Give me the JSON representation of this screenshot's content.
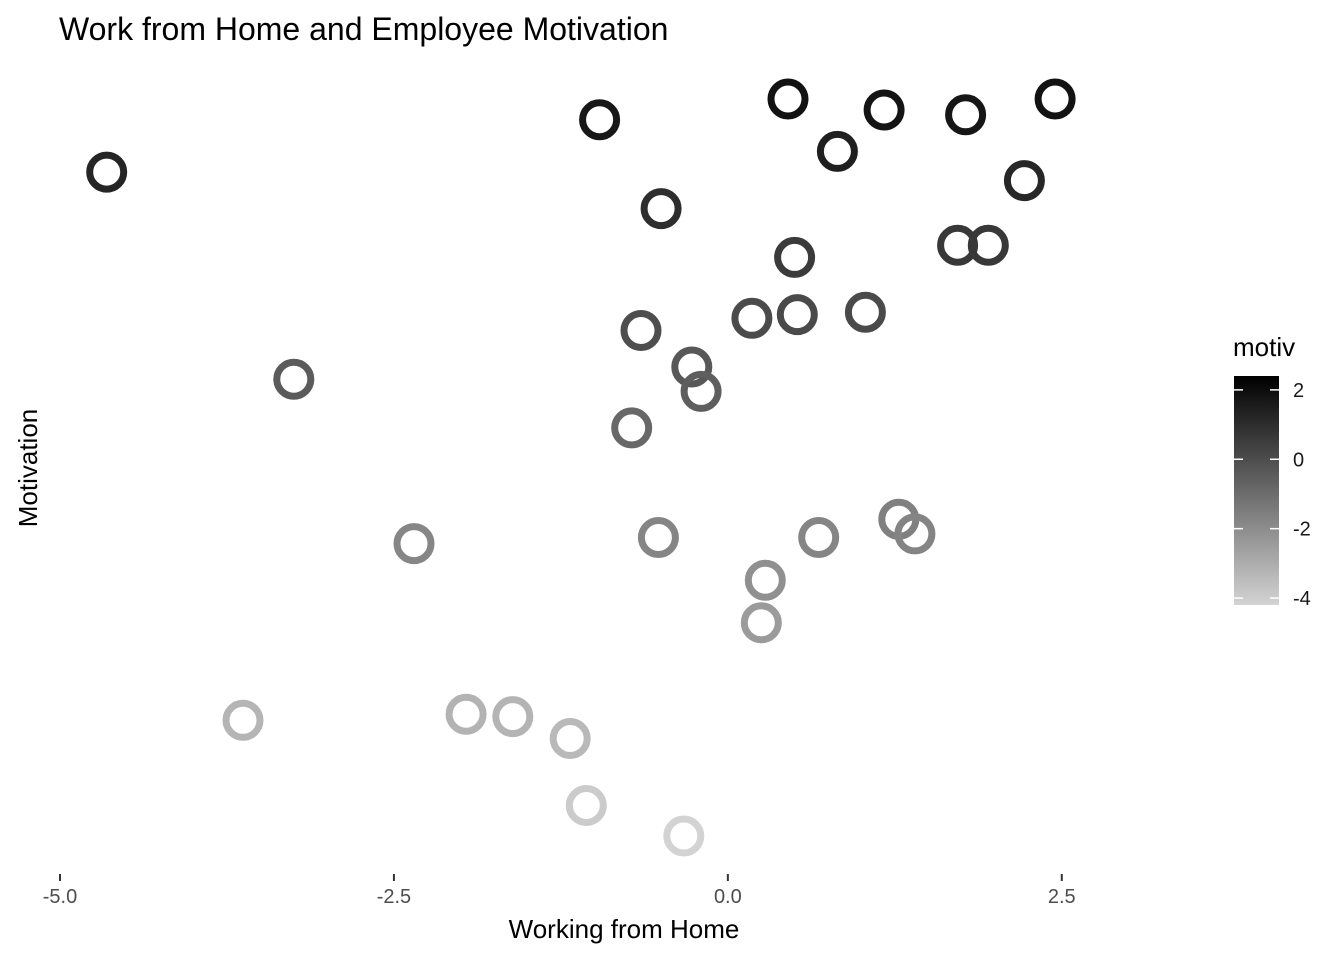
{
  "chart_data": {
    "type": "scatter",
    "title": "Work from Home and Employee Motivation",
    "xlabel": "Working from Home",
    "ylabel": "Motivation",
    "xlim": [
      -5.0,
      3.4
    ],
    "x_ticks": [
      -5.0,
      -2.5,
      0.0,
      2.5
    ],
    "x_tick_labels": [
      "-5.0",
      "-2.5",
      "0.0",
      "2.5"
    ],
    "y_ticks_shown": false,
    "grid": false,
    "marker": "hollow-circle",
    "legend": {
      "title": "motiv",
      "type": "colorbar",
      "placement": "right",
      "range": [
        -4.2,
        2.4
      ],
      "ticks": [
        2,
        0,
        -2,
        -4
      ],
      "tick_labels": [
        "2",
        "0",
        "-2",
        "-4"
      ],
      "color_low": "#d3d3d3",
      "color_high": "#000000"
    },
    "points": [
      {
        "x": -4.65,
        "y": 1.25
      },
      {
        "x": -0.96,
        "y": 1.68
      },
      {
        "x": 0.45,
        "y": 1.85
      },
      {
        "x": 1.17,
        "y": 1.76
      },
      {
        "x": 1.78,
        "y": 1.72
      },
      {
        "x": 2.45,
        "y": 1.85
      },
      {
        "x": 0.82,
        "y": 1.42
      },
      {
        "x": 2.22,
        "y": 1.18
      },
      {
        "x": -0.5,
        "y": 0.95
      },
      {
        "x": 1.72,
        "y": 0.65
      },
      {
        "x": 1.95,
        "y": 0.65
      },
      {
        "x": 0.5,
        "y": 0.55
      },
      {
        "x": -0.65,
        "y": -0.05
      },
      {
        "x": 0.18,
        "y": 0.05
      },
      {
        "x": 0.52,
        "y": 0.08
      },
      {
        "x": 1.03,
        "y": 0.1
      },
      {
        "x": -3.25,
        "y": -0.45
      },
      {
        "x": -0.27,
        "y": -0.35
      },
      {
        "x": -0.2,
        "y": -0.55
      },
      {
        "x": -0.72,
        "y": -0.85
      },
      {
        "x": -2.35,
        "y": -1.8
      },
      {
        "x": -0.52,
        "y": -1.75
      },
      {
        "x": 0.68,
        "y": -1.75
      },
      {
        "x": 1.28,
        "y": -1.6
      },
      {
        "x": 1.4,
        "y": -1.72
      },
      {
        "x": 0.28,
        "y": -2.1
      },
      {
        "x": 0.25,
        "y": -2.45
      },
      {
        "x": -3.63,
        "y": -3.25
      },
      {
        "x": -1.96,
        "y": -3.2
      },
      {
        "x": -1.61,
        "y": -3.22
      },
      {
        "x": -1.18,
        "y": -3.4
      },
      {
        "x": -1.06,
        "y": -3.95
      },
      {
        "x": -0.33,
        "y": -4.2
      }
    ]
  }
}
